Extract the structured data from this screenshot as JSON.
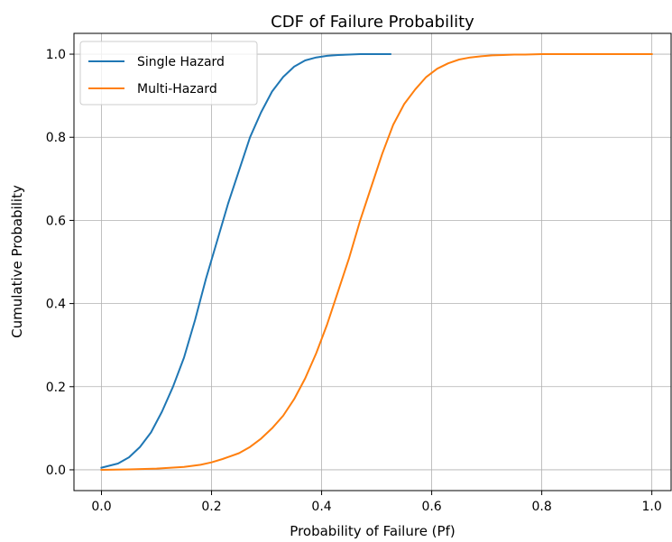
{
  "chart_data": {
    "type": "line",
    "title": "CDF of Failure Probability",
    "xlabel": "Probability of Failure (Pf)",
    "ylabel": "Cumulative Probability",
    "xlim": [
      -0.05,
      1.035
    ],
    "ylim": [
      -0.05,
      1.05
    ],
    "xticks": [
      0.0,
      0.2,
      0.4,
      0.6,
      0.8,
      1.0
    ],
    "xtick_labels": [
      "0.0",
      "0.2",
      "0.4",
      "0.6",
      "0.8",
      "1.0"
    ],
    "yticks": [
      0.0,
      0.2,
      0.4,
      0.6,
      0.8,
      1.0
    ],
    "ytick_labels": [
      "0.0",
      "0.2",
      "0.4",
      "0.6",
      "0.8",
      "1.0"
    ],
    "grid": true,
    "legend_position": "top-left",
    "series": [
      {
        "name": "Single Hazard",
        "color": "#1f77b4",
        "x": [
          0.0,
          0.03,
          0.05,
          0.07,
          0.09,
          0.11,
          0.13,
          0.15,
          0.17,
          0.19,
          0.21,
          0.23,
          0.25,
          0.27,
          0.29,
          0.31,
          0.33,
          0.35,
          0.37,
          0.39,
          0.41,
          0.43,
          0.45,
          0.47,
          0.5,
          0.525
        ],
        "y": [
          0.005,
          0.015,
          0.03,
          0.055,
          0.09,
          0.14,
          0.2,
          0.27,
          0.36,
          0.46,
          0.55,
          0.64,
          0.72,
          0.8,
          0.86,
          0.91,
          0.945,
          0.97,
          0.985,
          0.992,
          0.996,
          0.998,
          0.999,
          1.0,
          1.0,
          1.0
        ]
      },
      {
        "name": "Multi-Hazard",
        "color": "#ff7f0e",
        "x": [
          0.0,
          0.05,
          0.1,
          0.15,
          0.18,
          0.2,
          0.22,
          0.25,
          0.27,
          0.29,
          0.31,
          0.33,
          0.35,
          0.37,
          0.39,
          0.41,
          0.43,
          0.45,
          0.47,
          0.49,
          0.51,
          0.53,
          0.55,
          0.57,
          0.59,
          0.61,
          0.63,
          0.65,
          0.67,
          0.69,
          0.71,
          0.73,
          0.75,
          0.77,
          0.8,
          0.85,
          0.9,
          0.95,
          1.0
        ],
        "y": [
          0.0,
          0.001,
          0.003,
          0.007,
          0.012,
          0.018,
          0.026,
          0.04,
          0.055,
          0.075,
          0.1,
          0.13,
          0.17,
          0.22,
          0.28,
          0.35,
          0.43,
          0.51,
          0.6,
          0.68,
          0.76,
          0.83,
          0.88,
          0.915,
          0.945,
          0.965,
          0.978,
          0.987,
          0.992,
          0.995,
          0.997,
          0.998,
          0.999,
          0.999,
          1.0,
          1.0,
          1.0,
          1.0,
          1.0
        ]
      }
    ]
  }
}
